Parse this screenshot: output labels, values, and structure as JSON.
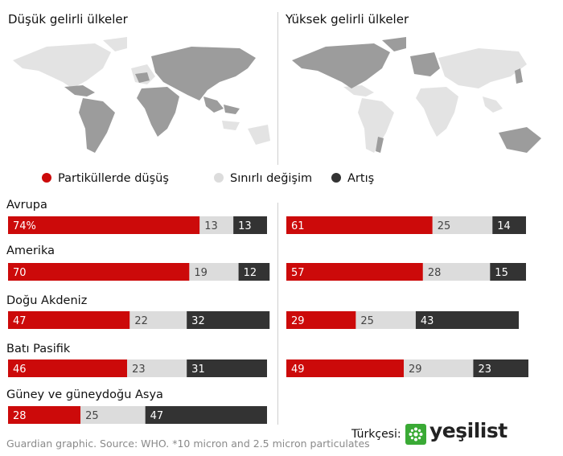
{
  "maps": [
    {
      "title": "Düşük gelirli ülkeler"
    },
    {
      "title": "Yüksek gelirli ülkeler"
    }
  ],
  "legend": [
    {
      "label": "Partiküllerde düşüş",
      "color": "#cc0a0a"
    },
    {
      "label": "Sınırlı değişim",
      "color": "#dcdcdc"
    },
    {
      "label": "Artış",
      "color": "#333333"
    }
  ],
  "colors": {
    "map_land": "#e3e3e3",
    "map_highlight": "#9c9c9c",
    "red": "#cc0a0a",
    "grey": "#dcdcdc",
    "dark": "#333333"
  },
  "chart_data": [
    {
      "type": "bar",
      "stacked": true,
      "title": "Düşük gelirli ülkeler",
      "unit": "%",
      "categories": [
        "Avrupa",
        "Amerika",
        "Doğu Akdeniz",
        "Batı Pasifik",
        "Güney ve güneydoğu Asya"
      ],
      "series": [
        {
          "name": "Partiküllerde düşüş",
          "values": [
            74,
            70,
            47,
            46,
            28
          ]
        },
        {
          "name": "Sınırlı değişim",
          "values": [
            13,
            19,
            22,
            23,
            25
          ]
        },
        {
          "name": "Artış",
          "values": [
            13,
            12,
            32,
            31,
            47
          ]
        }
      ],
      "first_value_label": "74%"
    },
    {
      "type": "bar",
      "stacked": true,
      "title": "Yüksek gelirli ülkeler",
      "unit": "%",
      "categories": [
        "Avrupa",
        "Amerika",
        "Doğu Akdeniz",
        "Batı Pasifik"
      ],
      "series": [
        {
          "name": "Partiküllerde düşüş",
          "values": [
            61,
            57,
            29,
            49
          ]
        },
        {
          "name": "Sınırlı değişim",
          "values": [
            25,
            28,
            25,
            29
          ]
        },
        {
          "name": "Artış",
          "values": [
            14,
            15,
            43,
            23
          ]
        }
      ]
    }
  ],
  "footer": {
    "source": "Guardian graphic. Source: WHO. *10 micron and 2.5 micron particulates",
    "credit_label": "Türkçesi:",
    "credit_name": "yeşilist",
    "logo_glyph": "❋"
  }
}
